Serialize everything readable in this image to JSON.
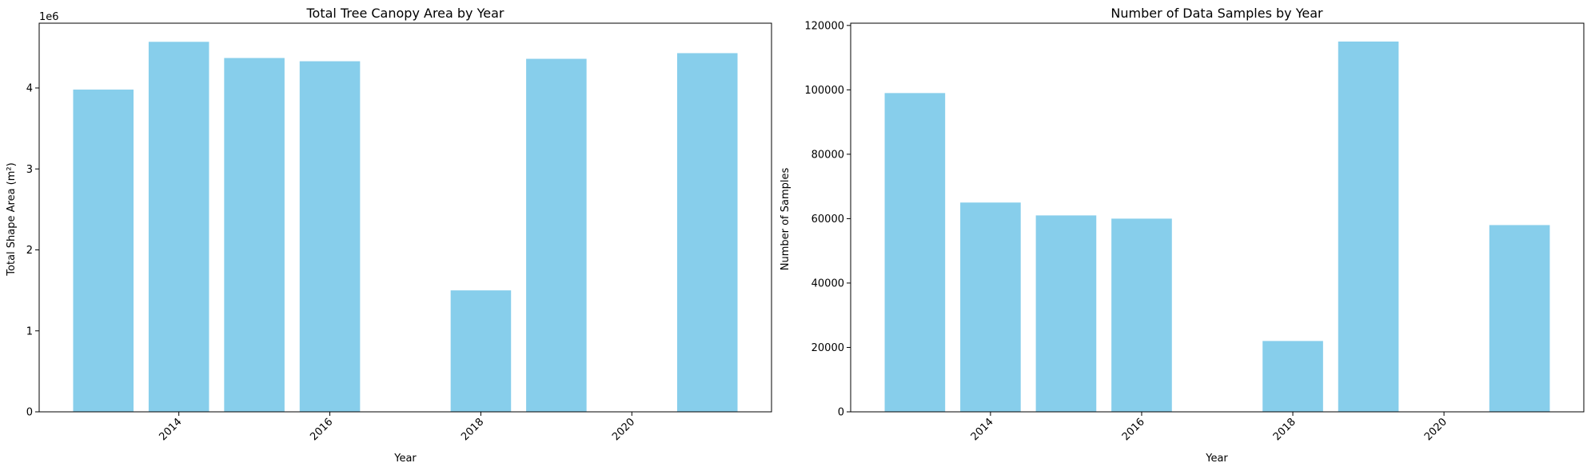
{
  "chart_data": [
    {
      "type": "bar",
      "title": "Total Tree Canopy Area by Year",
      "xlabel": "Year",
      "ylabel": "Total Shape Area (m²)",
      "offset_text": "1e6",
      "x": [
        2013,
        2014,
        2015,
        2016,
        2018,
        2019,
        2021
      ],
      "values": [
        3980000,
        4570000,
        4370000,
        4330000,
        1500000,
        4360000,
        4430000
      ],
      "xticks": [
        2014,
        2016,
        2018,
        2020
      ],
      "xtick_labels": [
        "2014",
        "2016",
        "2018",
        "2020"
      ],
      "yticks": [
        0,
        1000000,
        2000000,
        3000000,
        4000000
      ],
      "ytick_labels": [
        "0",
        "1",
        "2",
        "3",
        "4"
      ],
      "xlim": [
        2012.15,
        2021.85
      ],
      "ylim": [
        0,
        4800000
      ],
      "color": "#87CEEB",
      "grid": false
    },
    {
      "type": "bar",
      "title": "Number of Data Samples by Year",
      "xlabel": "Year",
      "ylabel": "Number of Samples",
      "x": [
        2013,
        2014,
        2015,
        2016,
        2018,
        2019,
        2021
      ],
      "values": [
        99000,
        65000,
        61000,
        60000,
        22000,
        115000,
        58000
      ],
      "xticks": [
        2014,
        2016,
        2018,
        2020
      ],
      "xtick_labels": [
        "2014",
        "2016",
        "2018",
        "2020"
      ],
      "yticks": [
        0,
        20000,
        40000,
        60000,
        80000,
        100000,
        120000
      ],
      "ytick_labels": [
        "0",
        "20000",
        "40000",
        "60000",
        "80000",
        "100000",
        "120000"
      ],
      "xlim": [
        2012.15,
        2021.85
      ],
      "ylim": [
        0,
        120700
      ],
      "color": "#87CEEB",
      "grid": false
    }
  ]
}
